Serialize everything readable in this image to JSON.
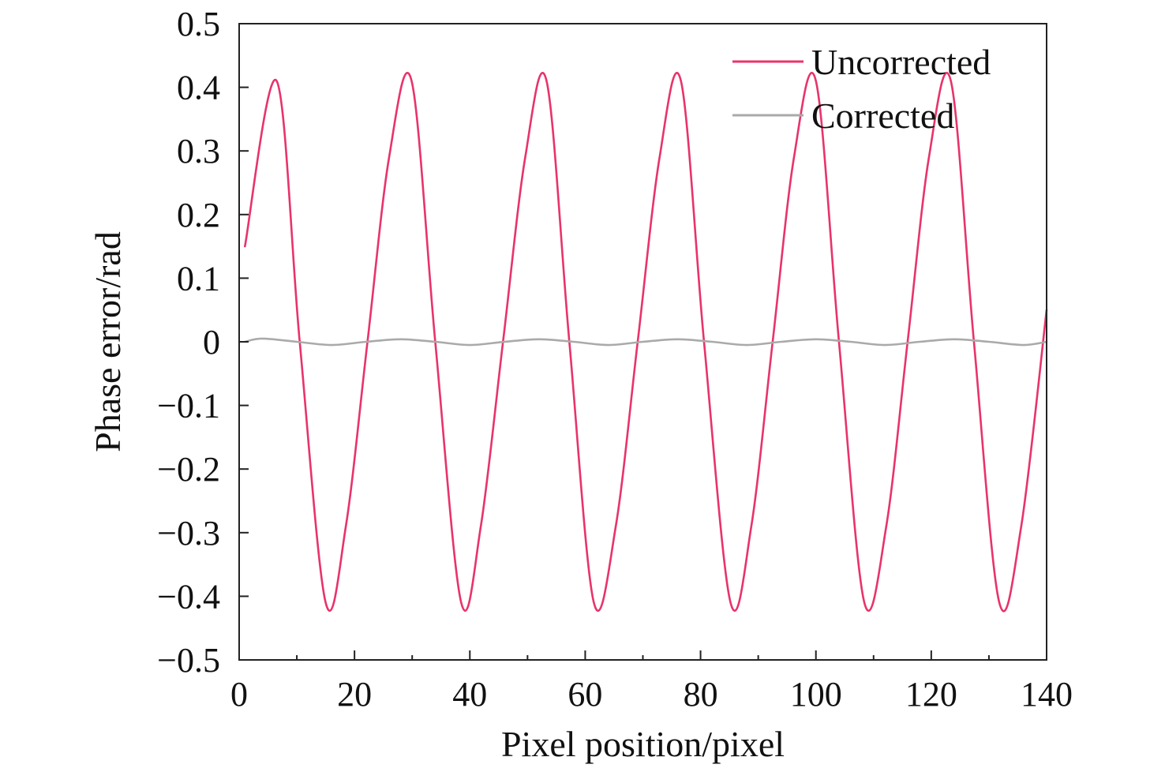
{
  "chart_data": {
    "type": "line",
    "xlabel": "Pixel position/pixel",
    "ylabel": "Phase error/rad",
    "xlim": [
      0,
      140
    ],
    "ylim": [
      -0.5,
      0.5
    ],
    "x_ticks": [
      0,
      20,
      40,
      60,
      80,
      100,
      120,
      140
    ],
    "x_tick_labels": [
      "0",
      "20",
      "40",
      "60",
      "80",
      "100",
      "120",
      "140"
    ],
    "y_ticks": [
      0.5,
      0.4,
      0.3,
      0.2,
      0.1,
      0,
      -0.1,
      -0.2,
      -0.3,
      -0.4,
      -0.5
    ],
    "y_tick_labels": [
      "0.5",
      "0.4",
      "0.3",
      "0.2",
      "0.1",
      "0",
      "−0.1",
      "−0.2",
      "−0.3",
      "−0.4",
      "−0.5"
    ],
    "grid": false,
    "legend_position": "top-right",
    "series": [
      {
        "name": "Uncorrected",
        "color": "#e8336b",
        "x": [
          1,
          6.5,
          10.5,
          15,
          18.5,
          22.25,
          26,
          29.9,
          34,
          38.5,
          41.9,
          45.75,
          49.6,
          53.3,
          57.25,
          61.5,
          65.3,
          69.1,
          72.9,
          76.6,
          80.6,
          85.2,
          88.8,
          92.5,
          96.2,
          100,
          104,
          108.4,
          112.2,
          115.9,
          119.6,
          123.4,
          127.4,
          131.8,
          135.6,
          140
        ],
        "y": [
          0.15,
          0.41,
          0,
          -0.41,
          -0.29,
          0,
          0.29,
          0.41,
          0,
          -0.41,
          -0.29,
          0,
          0.29,
          0.41,
          0,
          -0.41,
          -0.29,
          0,
          0.29,
          0.41,
          0,
          -0.41,
          -0.29,
          0,
          0.29,
          0.41,
          0,
          -0.41,
          -0.29,
          0,
          0.29,
          0.41,
          0,
          -0.41,
          -0.29,
          0.05
        ]
      },
      {
        "name": "Corrected",
        "color": "#aaaaaa",
        "x": [
          1,
          4,
          10,
          16,
          22,
          28,
          34,
          40,
          46,
          52,
          58,
          64,
          70,
          76,
          82,
          88,
          94,
          100,
          106,
          112,
          118,
          124,
          130,
          136,
          140
        ],
        "y": [
          0,
          0.005,
          0,
          -0.005,
          0,
          0.004,
          0,
          -0.005,
          0,
          0.004,
          0,
          -0.005,
          0,
          0.004,
          0,
          -0.005,
          0,
          0.004,
          0,
          -0.005,
          0,
          0.004,
          0,
          -0.005,
          0
        ]
      }
    ]
  }
}
